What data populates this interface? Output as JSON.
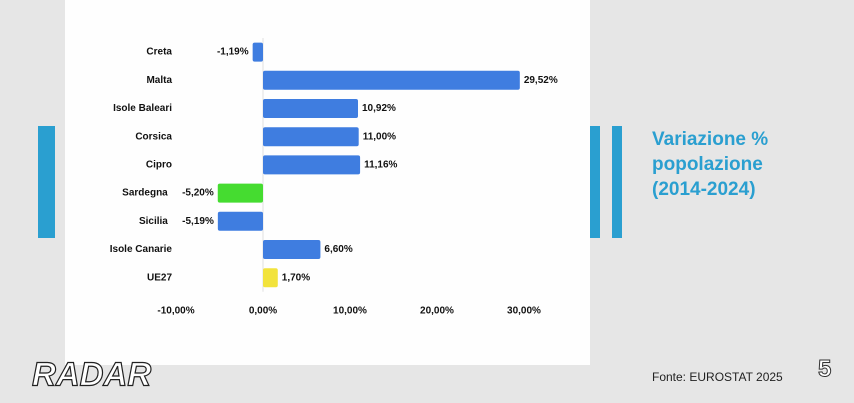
{
  "chart_data": {
    "type": "bar",
    "orientation": "horizontal",
    "title": "Variazione % popolazione (2014-2024)",
    "categories": [
      "Creta",
      "Malta",
      "Isole Baleari",
      "Corsica",
      "Cipro",
      "Sardegna",
      "Sicilia",
      "Isole Canarie",
      "UE27"
    ],
    "values": [
      -1.19,
      29.52,
      10.92,
      11.0,
      11.16,
      -5.2,
      -5.19,
      6.6,
      1.7
    ],
    "value_labels": [
      "-1,19%",
      "29,52%",
      "10,92%",
      "11,00%",
      "11,16%",
      "-5,20%",
      "-5,19%",
      "6,60%",
      "1,70%"
    ],
    "colors": [
      "#3f7de0",
      "#3f7de0",
      "#3f7de0",
      "#3f7de0",
      "#3f7de0",
      "#45dc30",
      "#3f7de0",
      "#3f7de0",
      "#f2e33c"
    ],
    "xlim": [
      -10,
      30
    ],
    "xticks": [
      {
        "value": -10,
        "label": "-10,00%"
      },
      {
        "value": 0,
        "label": "0,00%"
      },
      {
        "value": 10,
        "label": "10,00%"
      },
      {
        "value": 20,
        "label": "20,00%"
      },
      {
        "value": 30,
        "label": "30,00%"
      }
    ]
  },
  "source": "Fonte: EUROSTAT 2025",
  "logo": "RADAR",
  "channel": "5"
}
